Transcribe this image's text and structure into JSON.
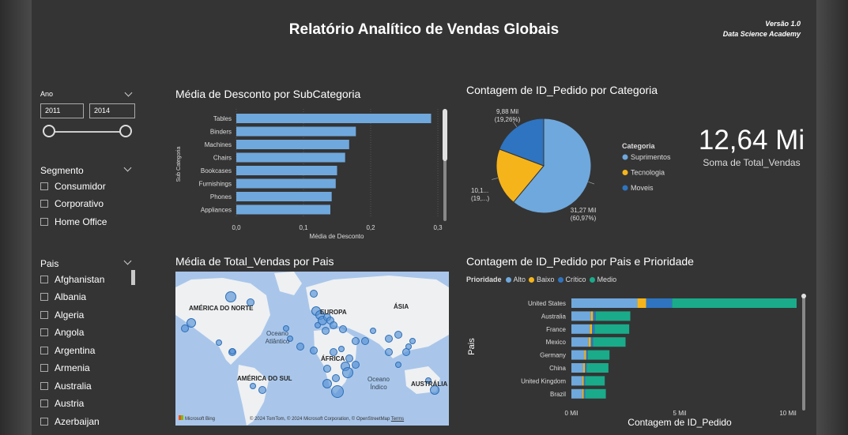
{
  "report": {
    "title": "Relatório Analítico de Vendas Globais",
    "version": "Versão 1.0",
    "author": "Data Science Academy"
  },
  "year_slicer": {
    "label": "Ano",
    "start": "2011",
    "end": "2014"
  },
  "segment_slicer": {
    "label": "Segmento",
    "items": [
      "Consumidor",
      "Corporativo",
      "Home Office"
    ]
  },
  "country_slicer": {
    "label": "Pais",
    "items": [
      "Afghanistan",
      "Albania",
      "Algeria",
      "Angola",
      "Argentina",
      "Armenia",
      "Australia",
      "Austria",
      "Azerbaijan"
    ]
  },
  "discount_chart": {
    "title": "Média de Desconto por SubCategoria",
    "chart_data": {
      "type": "bar",
      "orientation": "horizontal",
      "categories": [
        "Tables",
        "Binders",
        "Machines",
        "Chairs",
        "Bookcases",
        "Furnishings",
        "Phones",
        "Appliances"
      ],
      "values": [
        0.29,
        0.178,
        0.168,
        0.162,
        0.15,
        0.148,
        0.142,
        0.14
      ],
      "xlabel": "Média de Desconto",
      "ylabel": "Sub Categoria",
      "xlim": [
        0,
        0.3
      ],
      "xticks": [
        "0,0",
        "0,1",
        "0,2",
        "0,3"
      ],
      "color": "#6fa8dc"
    }
  },
  "category_pie": {
    "title": "Contagem de ID_Pedido por Categoria",
    "legend_title": "Categoria",
    "chart_data": {
      "type": "pie",
      "slices": [
        {
          "name": "Suprimentos",
          "value": 31.27,
          "label": "31,27 Mil",
          "pct": "(60,97%)",
          "color": "#6fa8dc"
        },
        {
          "name": "Tecnologia",
          "value": 10.1,
          "label": "10,1...",
          "pct": "(19,...)",
          "color": "#f6b41b"
        },
        {
          "name": "Moveis",
          "value": 9.88,
          "label": "9,88 Mil",
          "pct": "(19,26%)",
          "color": "#2f74c0"
        }
      ]
    }
  },
  "kpi": {
    "value": "12,64 Mi",
    "label": "Soma de Total_Vendas"
  },
  "map_card": {
    "title": "Média de Total_Vendas por Pais",
    "labels": {
      "north_america": "AMÉRICA DO NORTE",
      "europe": "EUROPA",
      "asia": "ÁSIA",
      "africa": "ÁFRICA",
      "south_america": "AMÉRICA DO SUL",
      "atlantic": "Oceano Atlântico",
      "indian": "Oceano Índico",
      "australia": "AUSTRÁLIA"
    },
    "bing": "Microsoft Bing",
    "credits": "© 2024 TomTom, © 2024 Microsoft Corporation, © OpenStreetMap",
    "terms": "Terms"
  },
  "priority_chart": {
    "title": "Contagem de ID_Pedido por Pais e Prioridade",
    "legend_title": "Prioridade",
    "chart_data": {
      "type": "bar",
      "orientation": "horizontal",
      "stacked": true,
      "categories": [
        "United States",
        "Australia",
        "France",
        "Mexico",
        "Germany",
        "China",
        "United Kingdom",
        "Brazil"
      ],
      "series": [
        {
          "name": "Alto",
          "color": "#6fa8dc",
          "values": [
            3.05,
            0.9,
            0.85,
            0.8,
            0.6,
            0.55,
            0.5,
            0.5
          ]
        },
        {
          "name": "Baixo",
          "color": "#f6b41b",
          "values": [
            0.4,
            0.1,
            0.1,
            0.1,
            0.08,
            0.08,
            0.07,
            0.07
          ]
        },
        {
          "name": "Crítico",
          "color": "#2f74c0",
          "values": [
            1.2,
            0.12,
            0.12,
            0.1,
            0.08,
            0.08,
            0.07,
            0.07
          ]
        },
        {
          "name": "Medio",
          "color": "#1aab8b",
          "values": [
            5.75,
            1.6,
            1.6,
            1.5,
            1.0,
            1.0,
            0.9,
            0.95
          ]
        }
      ],
      "xlabel": "Contagem de ID_Pedido",
      "ylabel": "Pais",
      "xlim": [
        0,
        10
      ],
      "xticks": [
        "0 Mil",
        "5 Mil",
        "10 Mil"
      ]
    }
  }
}
